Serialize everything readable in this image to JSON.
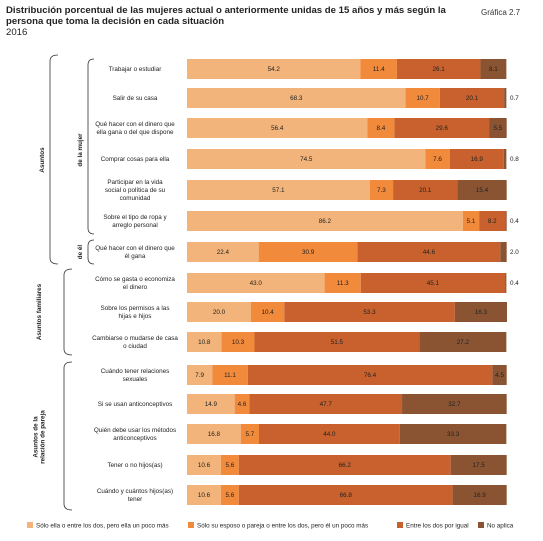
{
  "title": "Distribución porcentual de las mujeres actual o anteriormente unidas de 15 años y más según la persona que toma la decisión en cada situación",
  "subtitle": "2016",
  "figure_label": "Gráfica 2.7",
  "chart_data": {
    "type": "bar",
    "stacked": true,
    "orientation": "horizontal",
    "xlim": [
      0,
      100
    ],
    "categories": [
      "Trabajar o estudiar",
      "Salir de su casa",
      "Qué hacer con el dinero que ella gana o del que dispone",
      "Comprar cosas para ella",
      "Participar en la vida social o política de su comunidad",
      "Sobre el tipo de ropa y arreglo personal",
      "Qué hacer con el dinero que él gana",
      "Cómo se gasta o economiza el dinero",
      "Sobre los permisos a las hijas e hijos",
      "Cambiarse o mudarse de casa o ciudad",
      "Cuándo tener relaciones sexuales",
      "Si se usan anticonceptivos",
      "Quién debe usar los métodos anticonceptivos",
      "Tener o no hijos(as)",
      "Cuándo y cuántos hijos(as) tener"
    ],
    "series": [
      {
        "name": "Sólo ella o entre los dos, pero ella un poco más",
        "color": "#f2b47a",
        "values": [
          54.2,
          68.3,
          56.4,
          74.5,
          57.1,
          86.2,
          22.4,
          43.0,
          20.0,
          10.8,
          7.9,
          14.9,
          16.8,
          10.6,
          10.6
        ]
      },
      {
        "name": "Sólo su esposo o pareja o entre los dos, pero él un poco más",
        "color": "#f28a3c",
        "values": [
          11.4,
          10.7,
          8.4,
          7.6,
          7.3,
          5.1,
          30.9,
          11.3,
          10.4,
          10.3,
          11.1,
          4.6,
          5.7,
          5.6,
          5.6
        ]
      },
      {
        "name": "Entre los dos por igual",
        "color": "#c8612d",
        "values": [
          26.1,
          20.1,
          29.6,
          16.9,
          20.1,
          8.2,
          44.6,
          45.1,
          53.3,
          51.5,
          76.4,
          47.7,
          44.0,
          66.2,
          66.8
        ]
      },
      {
        "name": "No aplica",
        "color": "#8a5433",
        "values": [
          8.1,
          0.7,
          5.5,
          0.8,
          15.4,
          0.4,
          2.0,
          0.4,
          16.3,
          27.2,
          4.5,
          32.7,
          33.3,
          17.5,
          16.9
        ]
      }
    ],
    "groups": [
      {
        "label": "Asuntos",
        "rows": [
          0,
          6
        ]
      },
      {
        "label": "de la mujer",
        "rows": [
          0,
          5
        ]
      },
      {
        "label": "de él",
        "rows": [
          6,
          6
        ]
      },
      {
        "label": "Asuntos familiares",
        "rows": [
          7,
          9
        ]
      },
      {
        "label": "Asuntos de la relación de pareja",
        "rows": [
          10,
          14
        ]
      }
    ]
  }
}
